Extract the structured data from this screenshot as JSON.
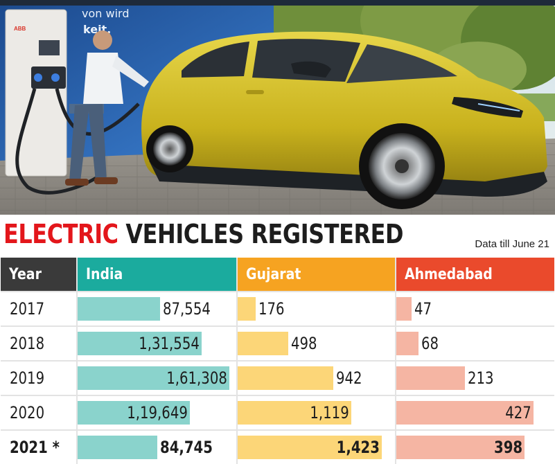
{
  "photo": {
    "banner_line1": "von wird",
    "banner_line2": "keit.",
    "charger_brand": "ABB"
  },
  "title": {
    "part1": "ELECTRIC",
    "part2": "VEHICLES REGISTERED"
  },
  "subtitle": "Data till June 21",
  "colors": {
    "red_title": "#e3161b",
    "header_year": "#3a3a3a",
    "header_india": "#1bab9e",
    "header_gujarat": "#f6a321",
    "header_ahmedabad": "#ea4a2c",
    "bar_india": "#8ad3cc",
    "bar_gujarat": "#fcd678",
    "bar_ahmedabad": "#f5b5a3"
  },
  "chart_data": {
    "type": "table",
    "title": "ELECTRIC VEHICLES REGISTERED",
    "subtitle": "Data till June 21",
    "columns": [
      "Year",
      "India",
      "Gujarat",
      "Ahmedabad"
    ],
    "rows": [
      {
        "year": "2017",
        "india": 87554,
        "india_label": "87,554",
        "gujarat": 176,
        "gujarat_label": "176",
        "ahmedabad": 47,
        "ahmedabad_label": "47"
      },
      {
        "year": "2018",
        "india": 131554,
        "india_label": "1,31,554",
        "gujarat": 498,
        "gujarat_label": "498",
        "ahmedabad": 68,
        "ahmedabad_label": "68"
      },
      {
        "year": "2019",
        "india": 161308,
        "india_label": "1,61,308",
        "gujarat": 942,
        "gujarat_label": "942",
        "ahmedabad": 213,
        "ahmedabad_label": "213"
      },
      {
        "year": "2020",
        "india": 119649,
        "india_label": "1,19,649",
        "gujarat": 1119,
        "gujarat_label": "1,119",
        "ahmedabad": 427,
        "ahmedabad_label": "427"
      },
      {
        "year": "2021 *",
        "india": 84745,
        "india_label": "84,745",
        "gujarat": 1423,
        "gujarat_label": "1,423",
        "ahmedabad": 398,
        "ahmedabad_label": "398",
        "bold": true
      }
    ]
  }
}
